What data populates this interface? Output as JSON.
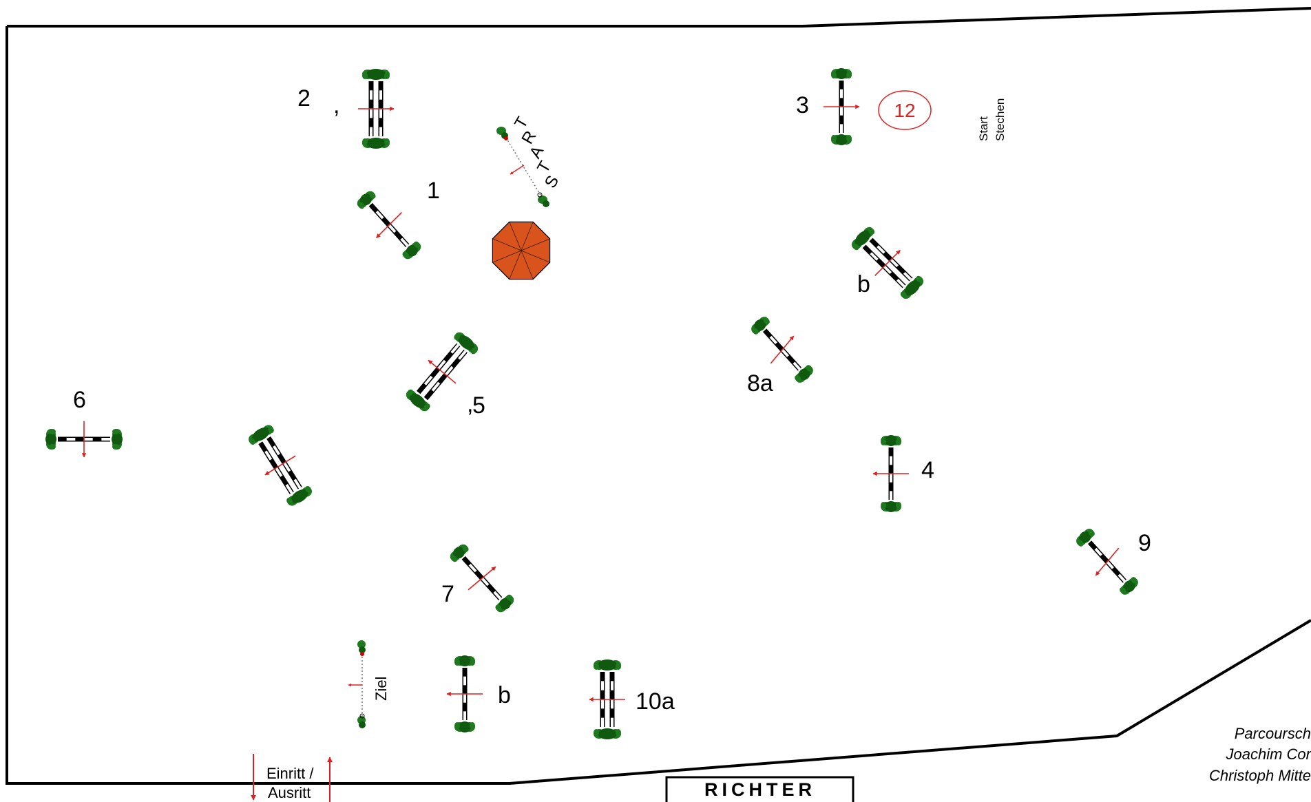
{
  "course_labels": {
    "n1": "1",
    "n2": "2",
    "n3": "3",
    "n4": "4",
    "n5": "5",
    "n6": "6",
    "n7": "7",
    "n8a": "8a",
    "n8b": "b",
    "n9": "9",
    "n10a": "10a",
    "n10b": "b",
    "n12": "12",
    "comma2": ",",
    "comma5": ","
  },
  "start_gate": {
    "letters": [
      "S",
      "T",
      "A",
      "R",
      "T"
    ]
  },
  "finish_gate": {
    "label": "Ziel"
  },
  "jump_off": {
    "line1": "Start",
    "line2": "Stechen"
  },
  "entrance": {
    "line1": "Einritt /",
    "line2": "Ausritt"
  },
  "judge_box": {
    "label": "RICHTER"
  },
  "designer": {
    "line1": "Parcoursch",
    "line2": "Joachim Cor",
    "line3": "Christoph Mitte"
  },
  "colors": {
    "arena_line": "#000000",
    "direction_arrow": "#e02020",
    "marker_red": "#e02020",
    "bush_green": "#1f7a1f",
    "bush_dark": "#0f5a0f",
    "pole_black": "#000000",
    "pole_white": "#ffffff",
    "umbrella": "#d9541c"
  }
}
